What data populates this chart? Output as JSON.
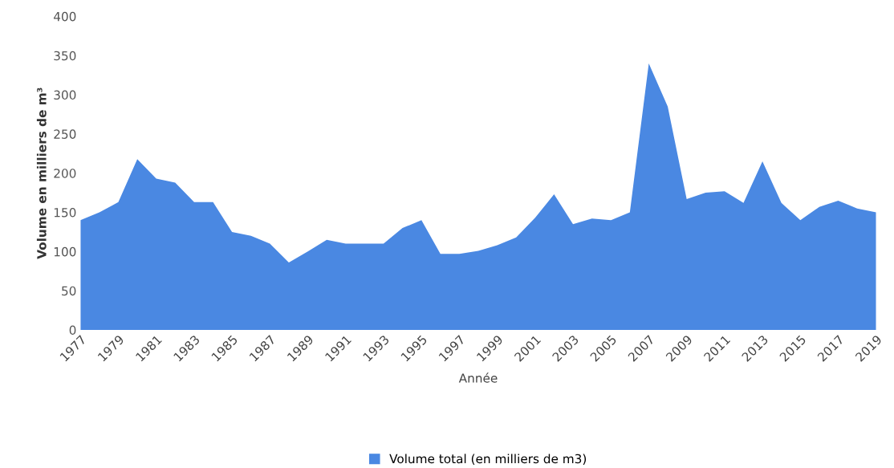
{
  "chart_data": {
    "type": "area",
    "xlabel": "Année",
    "ylabel": "Volume en milliers de m³",
    "categories": [
      "1977",
      null,
      "1979",
      null,
      "1981",
      null,
      "1983",
      null,
      "1985",
      null,
      "1987",
      null,
      "1989",
      null,
      "1991",
      null,
      "1993",
      null,
      "1995",
      null,
      "1997",
      null,
      "1999",
      null,
      "2001",
      null,
      "2003",
      null,
      "2005",
      null,
      "2007",
      null,
      "2009",
      null,
      "2011",
      null,
      "2013",
      null,
      "2015",
      null,
      "2017",
      null,
      "2019"
    ],
    "series": [
      {
        "name": "Volume total (en milliers de m3)",
        "color": "#4a88e2",
        "values": [
          140,
          150,
          163,
          218,
          193,
          188,
          163,
          163,
          125,
          120,
          110,
          86,
          100,
          115,
          110,
          110,
          110,
          130,
          140,
          97,
          97,
          101,
          108,
          118,
          143,
          173,
          135,
          142,
          140,
          150,
          340,
          285,
          167,
          175,
          177,
          162,
          215,
          162,
          140,
          157,
          165,
          155,
          150
        ]
      }
    ],
    "ylim": [
      0,
      400
    ],
    "yticks": [
      0,
      50,
      100,
      150,
      200,
      250,
      300,
      350,
      400
    ],
    "grid": false,
    "legend": "bottom"
  }
}
